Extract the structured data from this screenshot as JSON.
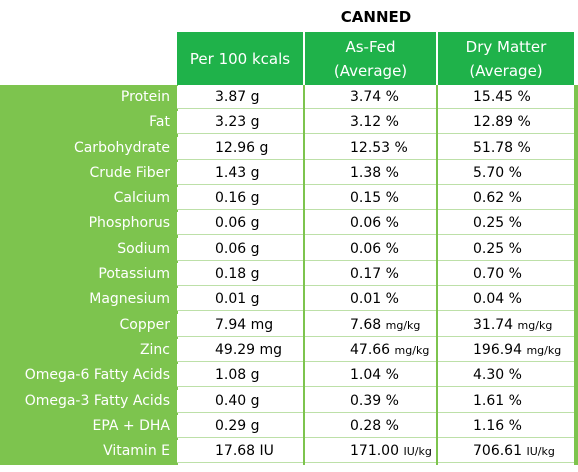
{
  "title": "CANNED",
  "headers": [
    {
      "line1": "Per 100 kcals",
      "line2": ""
    },
    {
      "line1": "As-Fed",
      "line2": "(Average)"
    },
    {
      "line1": "Dry Matter",
      "line2": "(Average)"
    }
  ],
  "rows": [
    {
      "label": "Protein",
      "per100": "3.87 g",
      "asfed": "3.74 %",
      "dry": "15.45 %"
    },
    {
      "label": "Fat",
      "per100": "3.23 g",
      "asfed": "3.12 %",
      "dry": "12.89 %"
    },
    {
      "label": "Carbohydrate",
      "per100": "12.96 g",
      "asfed": "12.53 %",
      "dry": "51.78 %"
    },
    {
      "label": "Crude Fiber",
      "per100": "1.43 g",
      "asfed": "1.38 %",
      "dry": "5.70 %"
    },
    {
      "label": "Calcium",
      "per100": "0.16 g",
      "asfed": "0.15 %",
      "dry": "0.62 %"
    },
    {
      "label": "Phosphorus",
      "per100": "0.06 g",
      "asfed": "0.06 %",
      "dry": "0.25 %"
    },
    {
      "label": "Sodium",
      "per100": "0.06 g",
      "asfed": "0.06 %",
      "dry": "0.25 %"
    },
    {
      "label": "Potassium",
      "per100": "0.18 g",
      "asfed": "0.17 %",
      "dry": "0.70 %"
    },
    {
      "label": "Magnesium",
      "per100": "0.01 g",
      "asfed": "0.01 %",
      "dry": "0.04 %"
    },
    {
      "label": "Copper",
      "per100": "7.94 mg",
      "asfed": "7.68",
      "asfed_unit": "mg/kg",
      "dry": "31.74",
      "dry_unit": "mg/kg"
    },
    {
      "label": "Zinc",
      "per100": "49.29 mg",
      "asfed": "47.66",
      "asfed_unit": "mg/kg",
      "dry": "196.94",
      "dry_unit": "mg/kg"
    },
    {
      "label": "Omega-6 Fatty Acids",
      "per100": "1.08 g",
      "asfed": "1.04 %",
      "dry": "4.30 %"
    },
    {
      "label": "Omega-3 Fatty Acids",
      "per100": "0.40 g",
      "asfed": "0.39 %",
      "dry": "1.61 %"
    },
    {
      "label": "EPA + DHA",
      "per100": "0.29 g",
      "asfed": "0.28 %",
      "dry": "1.16 %"
    },
    {
      "label": "Vitamin E",
      "per100": "17.68 IU",
      "asfed": "171.00",
      "asfed_unit": "IU/kg",
      "dry": "706.61",
      "dry_unit": "IU/kg"
    }
  ]
}
